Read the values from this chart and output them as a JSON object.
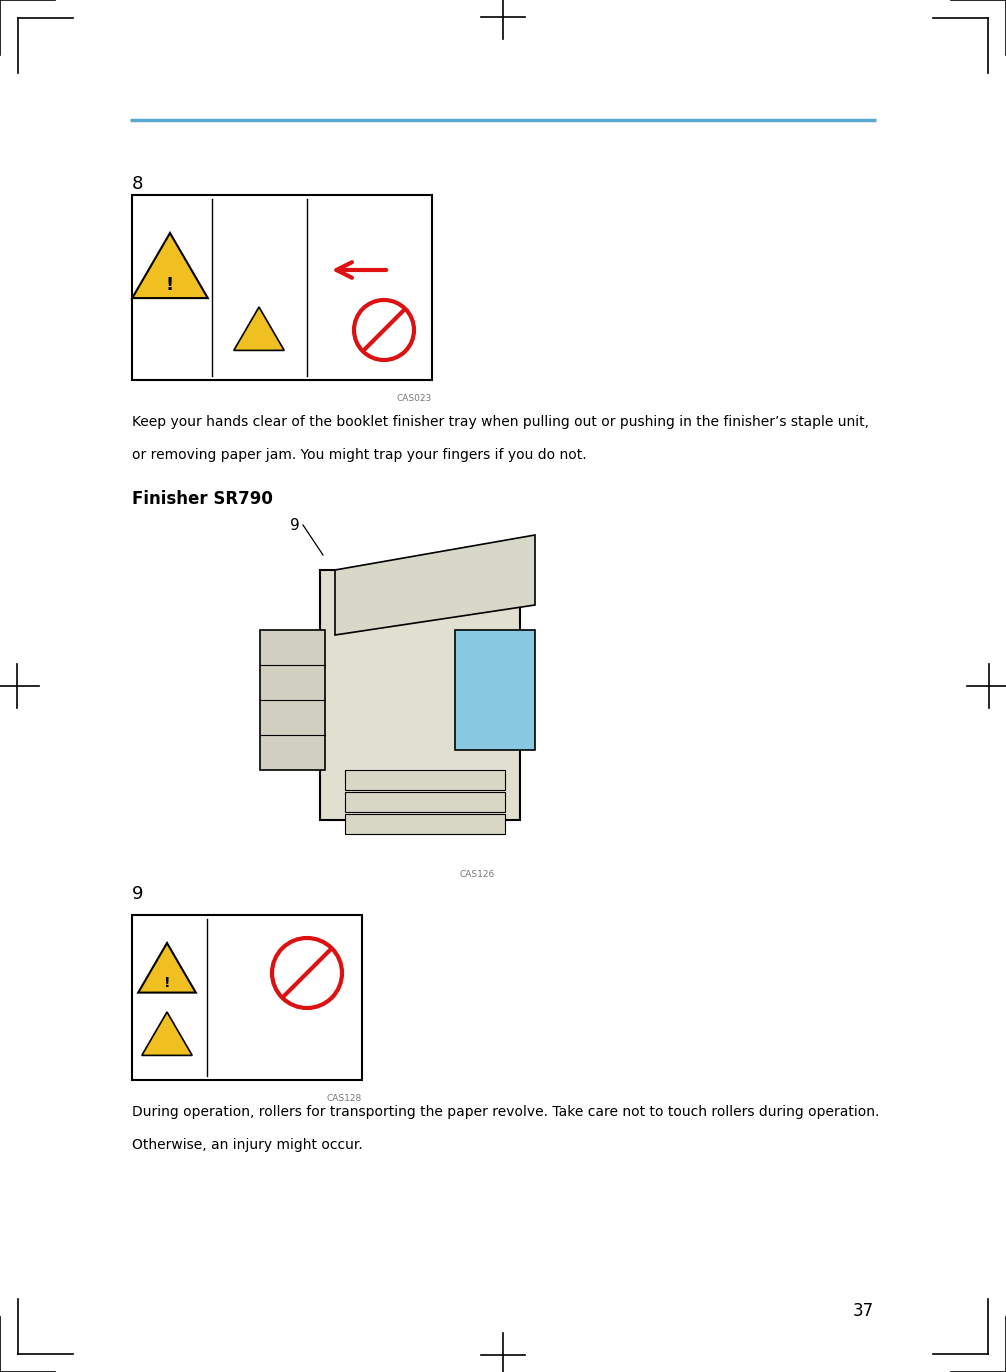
{
  "bg_color": "#ffffff",
  "page_number": "37",
  "blue_line_color": "#5aa8d0",
  "caption_cas023": "CAS023",
  "caption_cas126": "CAS126",
  "caption_cas128": "CAS128",
  "text1_line1": "Keep your hands clear of the booklet finisher tray when pulling out or pushing in the finisher’s staple unit,",
  "text1_line2": "or removing paper jam. You might trap your fingers if you do not.",
  "finisher_title": "Finisher SR790",
  "section_8": "8",
  "section_9a": "9",
  "section_9b": "9",
  "text2_line1": "During operation, rollers for transporting the paper revolve. Take care not to touch rollers during operation.",
  "text2_line2": "Otherwise, an injury might occur.",
  "yellow_tri": "#f0c020",
  "red_color": "#dd1111"
}
